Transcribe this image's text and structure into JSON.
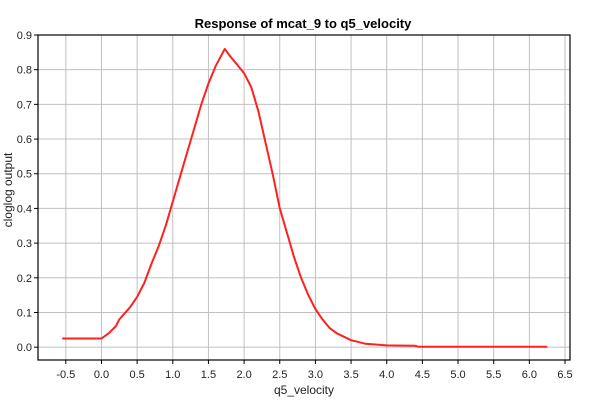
{
  "chart_data": {
    "type": "line",
    "title": "Response of mcat_9 to q5_velocity",
    "xlabel": "q5_velocity",
    "ylabel": "cloglog output",
    "xlim": [
      -0.89,
      6.57
    ],
    "ylim": [
      -0.037,
      0.9
    ],
    "xticks": [
      -0.5,
      0.0,
      0.5,
      1.0,
      1.5,
      2.0,
      2.5,
      3.0,
      3.5,
      4.0,
      4.5,
      5.0,
      5.5,
      6.0,
      6.5
    ],
    "yticks": [
      0.0,
      0.1,
      0.2,
      0.3,
      0.4,
      0.5,
      0.6,
      0.7,
      0.8,
      0.9
    ],
    "grid": true,
    "series": [
      {
        "name": "response",
        "color": "#ff2020",
        "x": [
          -0.55,
          0.0,
          0.1,
          0.2,
          0.25,
          0.4,
          0.5,
          0.6,
          0.7,
          0.8,
          0.9,
          1.0,
          1.1,
          1.2,
          1.3,
          1.4,
          1.5,
          1.6,
          1.73,
          1.8,
          1.9,
          2.0,
          2.1,
          2.2,
          2.3,
          2.4,
          2.5,
          2.6,
          2.7,
          2.8,
          2.9,
          3.0,
          3.1,
          3.2,
          3.3,
          3.5,
          3.7,
          4.0,
          4.4,
          4.45,
          6.25
        ],
        "y": [
          0.025,
          0.025,
          0.04,
          0.06,
          0.08,
          0.115,
          0.145,
          0.185,
          0.24,
          0.29,
          0.35,
          0.42,
          0.49,
          0.56,
          0.63,
          0.7,
          0.76,
          0.81,
          0.86,
          0.84,
          0.815,
          0.79,
          0.75,
          0.68,
          0.59,
          0.5,
          0.4,
          0.33,
          0.26,
          0.2,
          0.15,
          0.11,
          0.08,
          0.055,
          0.04,
          0.02,
          0.01,
          0.005,
          0.004,
          0.001,
          0.001
        ]
      }
    ]
  }
}
